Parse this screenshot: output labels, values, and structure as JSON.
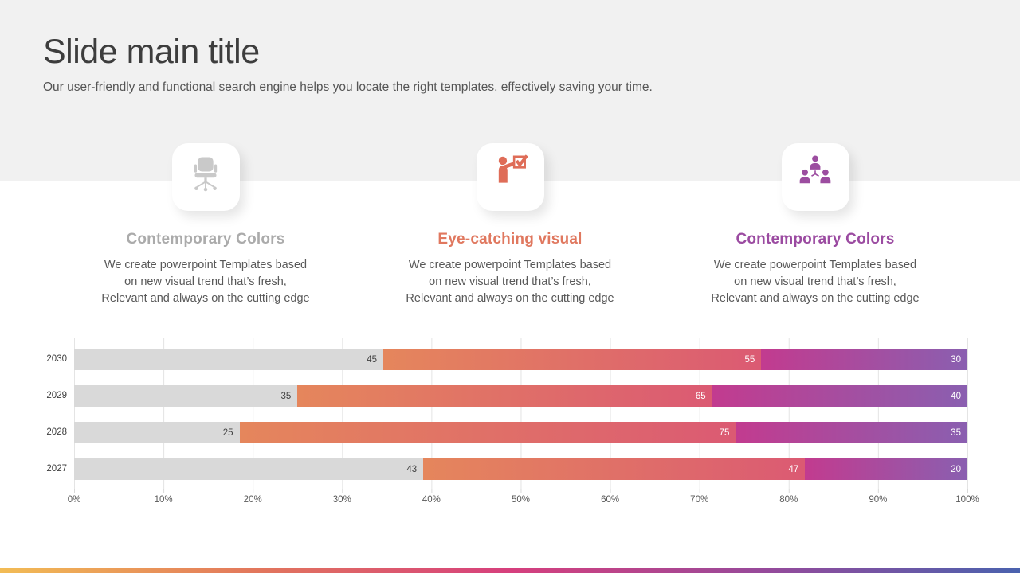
{
  "slide": {
    "title": "Slide main title",
    "subtitle": "Our user-friendly and functional search engine helps you locate the right templates, effectively saving your time."
  },
  "cards": [
    {
      "icon": "office-chair-icon",
      "icon_color": "#c9c9c9",
      "title": "Contemporary Colors",
      "title_color": "#ababab",
      "description": "We create powerpoint Templates based\non new visual trend that’s fresh,\nRelevant and always on the cutting edge"
    },
    {
      "icon": "presenter-checkbox-icon",
      "icon_color": "#df6d58",
      "title": "Eye-catching visual",
      "title_color": "#e0785f",
      "description": "We create powerpoint Templates based\non new visual trend that’s fresh,\nRelevant and always on the cutting edge"
    },
    {
      "icon": "team-hierarchy-icon",
      "icon_color": "#9c4da0",
      "title": "Contemporary Colors",
      "title_color": "#9b4ba1",
      "description": "We create powerpoint Templates based\non new visual trend that’s fresh,\nRelevant and always on the cutting edge"
    }
  ],
  "chart_data": {
    "type": "bar",
    "subtype": "horizontal-100pct-stacked",
    "categories": [
      "2030",
      "2029",
      "2028",
      "2027"
    ],
    "series": [
      {
        "name": "segment-1-gray",
        "colors": [
          "#d9d9d9",
          "#d9d9d9"
        ],
        "label_color": "#404040",
        "values": [
          45,
          35,
          25,
          43
        ]
      },
      {
        "name": "segment-2-orange",
        "colors": [
          "#e5865c",
          "#db5a73"
        ],
        "label_color": "#ffffff",
        "values": [
          55,
          65,
          75,
          47
        ]
      },
      {
        "name": "segment-3-purple",
        "colors": [
          "#c23b8f",
          "#8a5fb0"
        ],
        "label_color": "#ffffff",
        "values": [
          30,
          40,
          35,
          20
        ]
      }
    ],
    "x_ticks": [
      "0%",
      "10%",
      "20%",
      "30%",
      "40%",
      "50%",
      "60%",
      "70%",
      "80%",
      "90%",
      "100%"
    ],
    "xlim": [
      0,
      100
    ],
    "grid": true,
    "legend": false,
    "title": "",
    "xlabel": "",
    "ylabel": ""
  },
  "footer": {
    "gradient_colors": [
      "#f2bc55",
      "#e2775c",
      "#d63f7d",
      "#964a9b",
      "#4a62ae"
    ]
  }
}
